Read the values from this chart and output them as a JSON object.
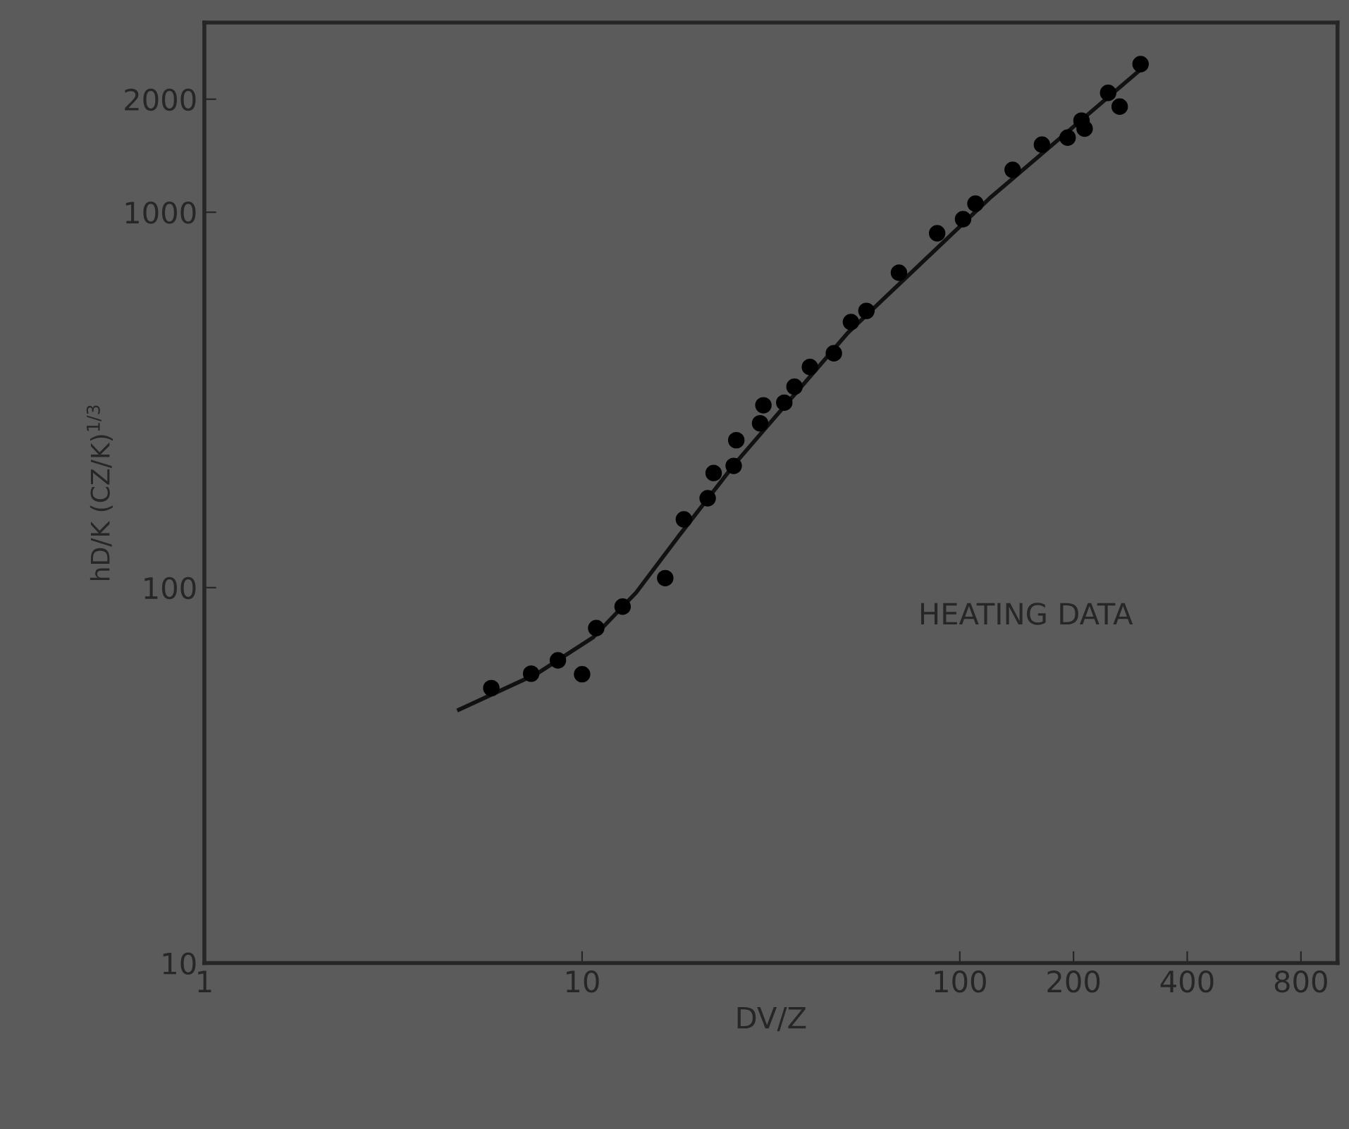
{
  "chart_data": {
    "type": "scatter",
    "xlabel": "DV/Z",
    "ylabel": "hD/K (CZ/K)$^{1/3}$",
    "log": "xy",
    "grid": false,
    "marker": "circle",
    "xlim": [
      1,
      1000
    ],
    "ylim": [
      10,
      3200
    ],
    "xticks": [
      1,
      10,
      100,
      200,
      400,
      800
    ],
    "yticks": [
      10,
      100,
      1000,
      2000
    ],
    "annotations": [
      "HEATING DATA"
    ],
    "series": [
      {
        "color": "#000000",
        "x": [
          5.75,
          7.33,
          8.63,
          10.0,
          10.9,
          12.8,
          16.6,
          18.6,
          21.5,
          22.3,
          25.2,
          25.6,
          29.6,
          30.2,
          34.3,
          36.5,
          40.1,
          46.4,
          51.5,
          56.6,
          69.0,
          87.1,
          102,
          110,
          138,
          165,
          193,
          210,
          214,
          247,
          265,
          301
        ],
        "values": [
          54,
          59,
          64,
          58.8,
          78,
          89,
          106,
          152,
          173,
          202,
          211,
          247,
          274,
          306,
          311,
          343,
          387,
          421,
          510,
          546,
          690,
          879,
          958,
          1054,
          1297,
          1514,
          1580,
          1754,
          1670,
          2080,
          1911,
          2480
        ]
      },
      {
        "type": "line",
        "color": "#111111",
        "marker": "none",
        "x": [
          4.72,
          7.6,
          10.7,
          13.9,
          18.0,
          25.4,
          50.6,
          120,
          301
        ],
        "values": [
          47.3,
          59,
          73.7,
          97,
          137,
          214,
          478,
          1090,
          2400
        ]
      }
    ]
  }
}
